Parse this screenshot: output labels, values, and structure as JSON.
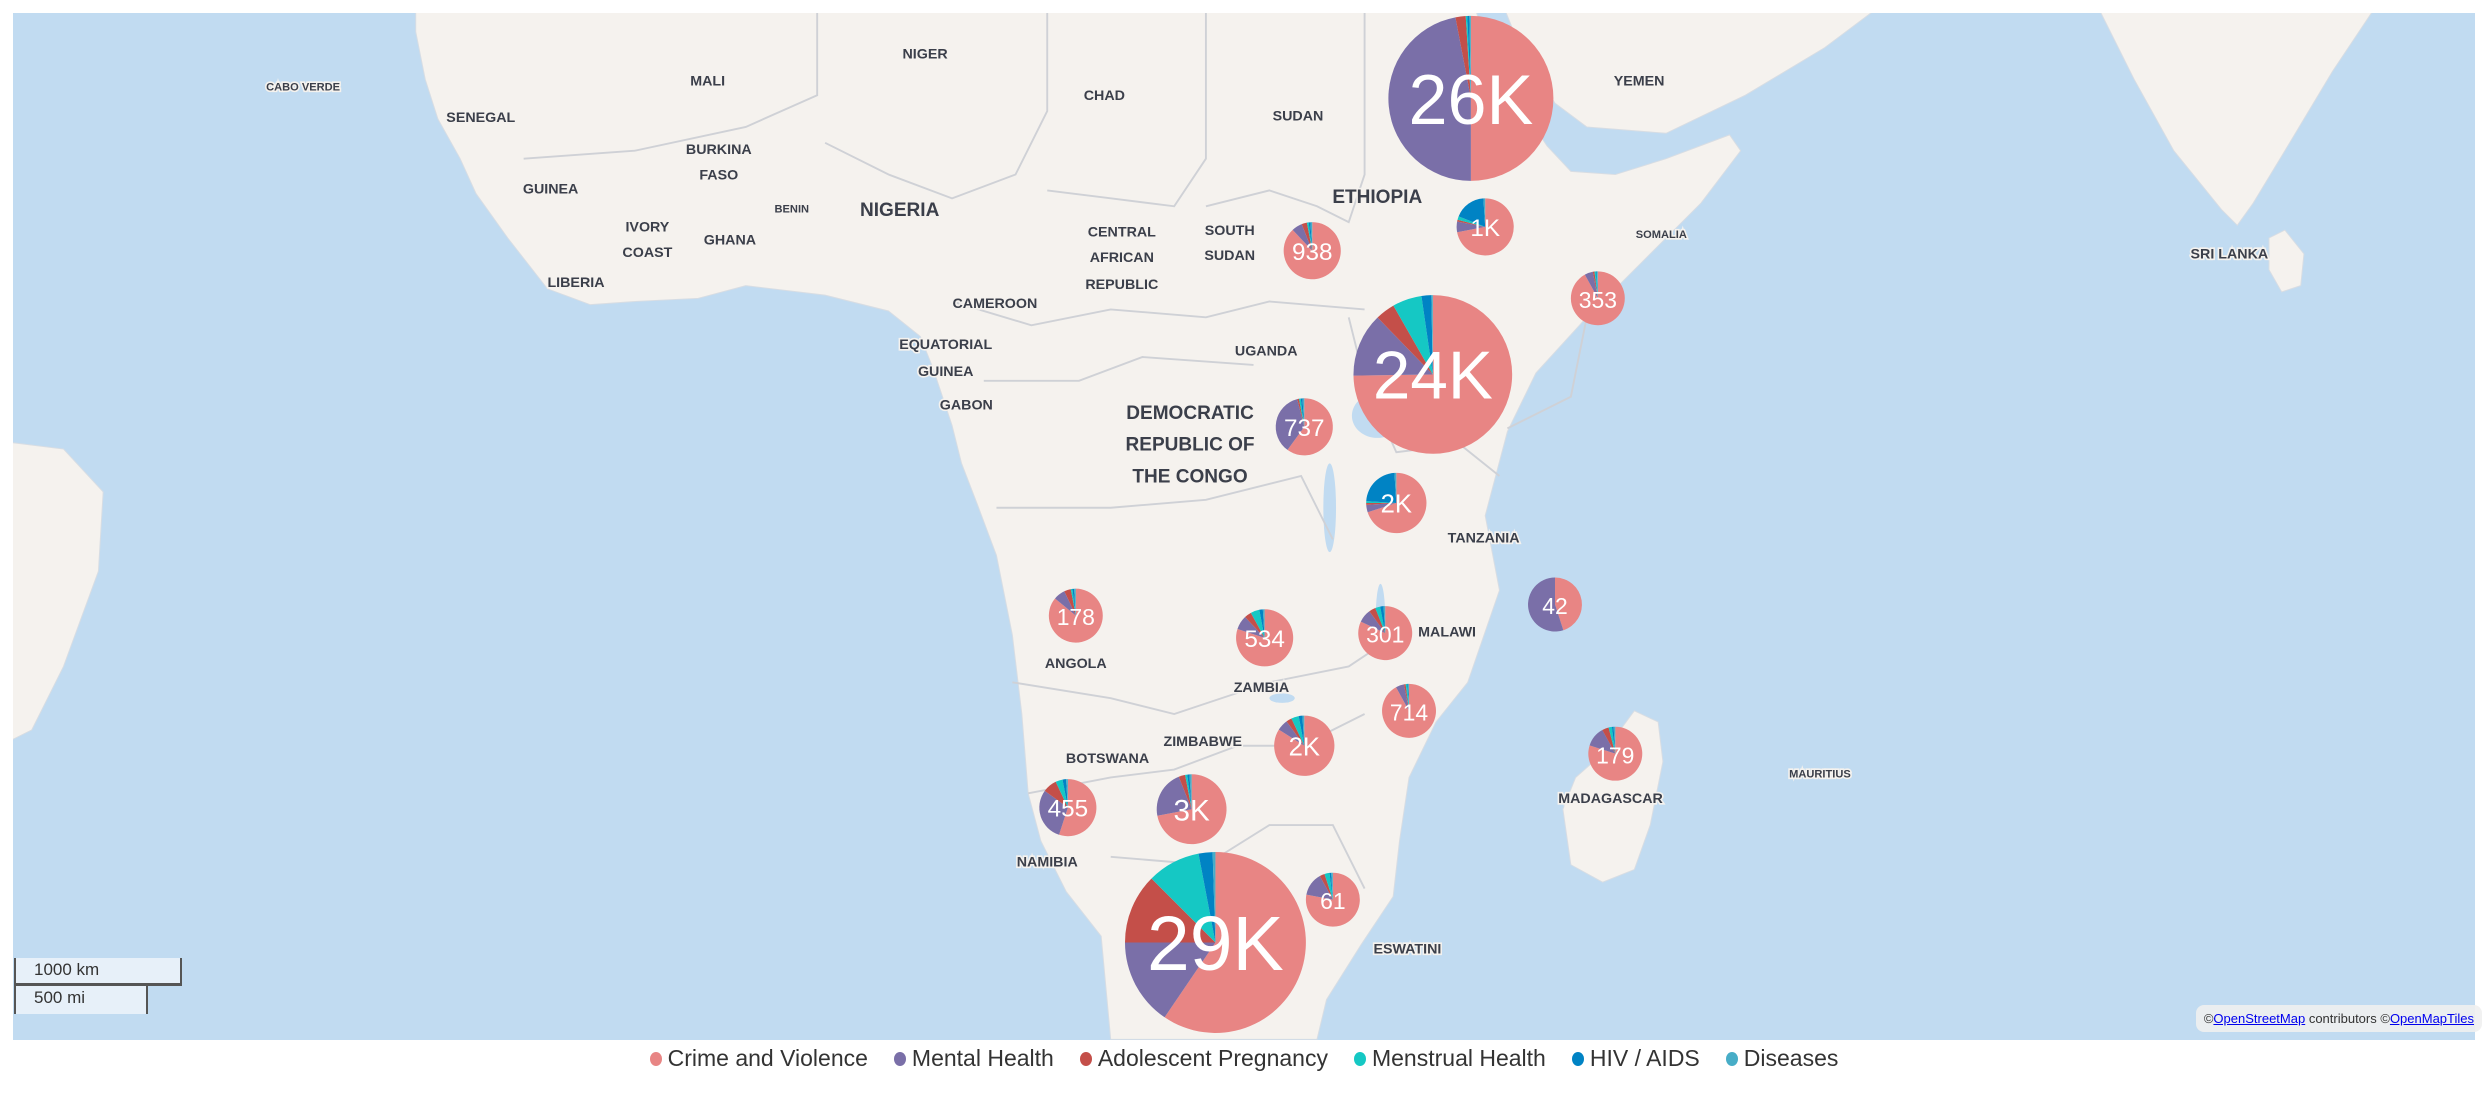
{
  "colors": {
    "ocean": "#C1DBF1",
    "land": "#F5F2EE",
    "border": "#CFD1D6"
  },
  "legend": [
    {
      "label": "Crime and Violence",
      "color": "#E88584"
    },
    {
      "label": "Mental Health",
      "color": "#7A6FA8"
    },
    {
      "label": "Adolescent Pregnancy",
      "color": "#C44F49"
    },
    {
      "label": "Menstrual Health",
      "color": "#15C8C4"
    },
    {
      "label": "HIV / AIDS",
      "color": "#0083C4"
    },
    {
      "label": "Diseases",
      "color": "#47ADC7"
    }
  ],
  "labels": {
    "cabo_verde": "CABO VERDE",
    "mali": "MALI",
    "niger": "NIGER",
    "chad": "CHAD",
    "sudan": "SUDAN",
    "yemen": "YEMEN",
    "senegal": "SENEGAL",
    "burkina1": "BURKINA",
    "burkina2": "FASO",
    "guinea": "GUINEA",
    "benin": "BENIN",
    "nigeria": "NIGERIA",
    "ivory1": "IVORY",
    "ivory2": "COAST",
    "ghana": "GHANA",
    "car1": "CENTRAL",
    "car2": "AFRICAN",
    "car3": "REPUBLIC",
    "ssudan1": "SOUTH",
    "ssudan2": "SUDAN",
    "ethiopia": "ETHIOPIA",
    "somalia": "SOMALIA",
    "srilanka": "SRI LANKA",
    "liberia": "LIBERIA",
    "cameroon": "CAMEROON",
    "eqg1": "EQUATORIAL",
    "eqg2": "GUINEA",
    "gabon": "GABON",
    "uganda": "UGANDA",
    "drc1": "DEMOCRATIC",
    "drc2": "REPUBLIC OF",
    "drc3": "THE CONGO",
    "tanzania": "TANZANIA",
    "angola": "ANGOLA",
    "zambia": "ZAMBIA",
    "malawi": "MALAWI",
    "zimbabwe": "ZIMBABWE",
    "madagascar": "MADAGASCAR",
    "mauritius": "MAURITIUS",
    "namibia": "NAMIBIA",
    "botswana": "BOTSWANA",
    "eswatini": "ESWATINI"
  },
  "pies": [
    {
      "region": "Ethiopia",
      "label": "26K",
      "shares": [
        0.5,
        0.47,
        0.02,
        0.003,
        0.004,
        0.003
      ]
    },
    {
      "region": "Ethiopia south",
      "label": "1K",
      "shares": [
        0.72,
        0.06,
        0.01,
        0.02,
        0.18,
        0.01
      ]
    },
    {
      "region": "South Sudan",
      "label": "938",
      "shares": [
        0.88,
        0.06,
        0.03,
        0.01,
        0.01,
        0.01
      ]
    },
    {
      "region": "Somalia",
      "label": "353",
      "shares": [
        0.92,
        0.05,
        0.01,
        0.01,
        0.005,
        0.005
      ]
    },
    {
      "region": "Kenya",
      "label": "24K",
      "shares": [
        0.75,
        0.13,
        0.04,
        0.06,
        0.02,
        0.003
      ]
    },
    {
      "region": "DRC east",
      "label": "737",
      "shares": [
        0.6,
        0.36,
        0.01,
        0.01,
        0.01,
        0.01
      ]
    },
    {
      "region": "Tanzania",
      "label": "2K",
      "shares": [
        0.7,
        0.04,
        0.01,
        0.01,
        0.23,
        0.01
      ]
    },
    {
      "region": "Comoros",
      "label": "42",
      "shares": [
        0.45,
        0.55,
        0,
        0,
        0,
        0
      ]
    },
    {
      "region": "Angola",
      "label": "178",
      "shares": [
        0.86,
        0.07,
        0.04,
        0.01,
        0.01,
        0.01
      ]
    },
    {
      "region": "Zambia",
      "label": "534",
      "shares": [
        0.8,
        0.08,
        0.04,
        0.05,
        0.02,
        0.01
      ]
    },
    {
      "region": "Malawi",
      "label": "301",
      "shares": [
        0.82,
        0.08,
        0.04,
        0.03,
        0.02,
        0.01
      ]
    },
    {
      "region": "Mozambique",
      "label": "714",
      "shares": [
        0.92,
        0.05,
        0.01,
        0.01,
        0.005,
        0.005
      ]
    },
    {
      "region": "Zimbabwe",
      "label": "2K",
      "shares": [
        0.84,
        0.06,
        0.03,
        0.04,
        0.02,
        0.01
      ]
    },
    {
      "region": "Madagascar",
      "label": "179",
      "shares": [
        0.8,
        0.12,
        0.04,
        0.02,
        0.01,
        0.01
      ]
    },
    {
      "region": "Namibia",
      "label": "455",
      "shares": [
        0.55,
        0.3,
        0.08,
        0.04,
        0.02,
        0.01
      ]
    },
    {
      "region": "Botswana",
      "label": "3K",
      "shares": [
        0.72,
        0.22,
        0.03,
        0.01,
        0.01,
        0.01
      ]
    },
    {
      "region": "South Africa",
      "label": "29K",
      "shares": [
        0.595,
        0.155,
        0.125,
        0.095,
        0.025,
        0.005
      ]
    },
    {
      "region": "Eswatini",
      "label": "61",
      "shares": [
        0.78,
        0.14,
        0.03,
        0.03,
        0.01,
        0.01
      ]
    }
  ],
  "scale": {
    "km": "1000 km",
    "mi": "500 mi"
  },
  "attribution": {
    "prefix": "©",
    "osm": "OpenStreetMap",
    "mid": " contributors  ©",
    "omt": "OpenMapTiles"
  }
}
